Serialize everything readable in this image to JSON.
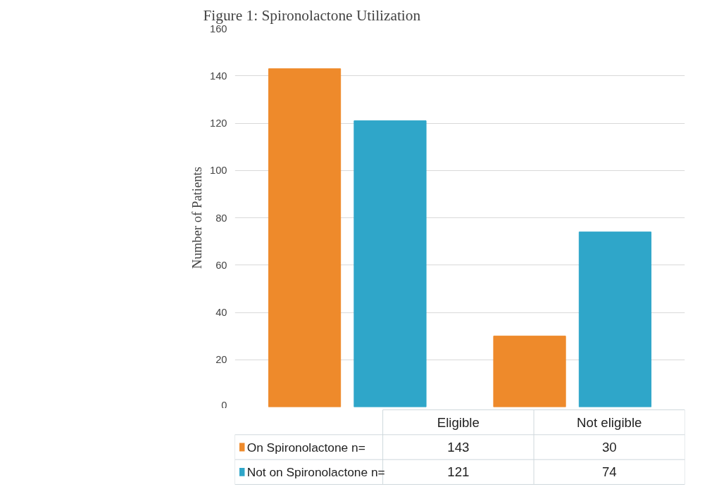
{
  "chart_data": {
    "type": "bar",
    "title": "Figure 1: Spironolactone Utilization",
    "ylabel": "Number of Patients",
    "categories": [
      "Eligible",
      "Not eligible"
    ],
    "series": [
      {
        "name": "On Spironolactone n=",
        "color": "#ee8a2b",
        "values": [
          143,
          30
        ]
      },
      {
        "name": "Not on Spironolactone n=",
        "color": "#2fa6c9",
        "values": [
          121,
          74
        ]
      }
    ],
    "ylim": [
      0,
      160
    ],
    "yticks": [
      0,
      20,
      40,
      60,
      80,
      100,
      120,
      140,
      160
    ],
    "grid": "y",
    "legend": "bottom",
    "data_labels": true
  }
}
